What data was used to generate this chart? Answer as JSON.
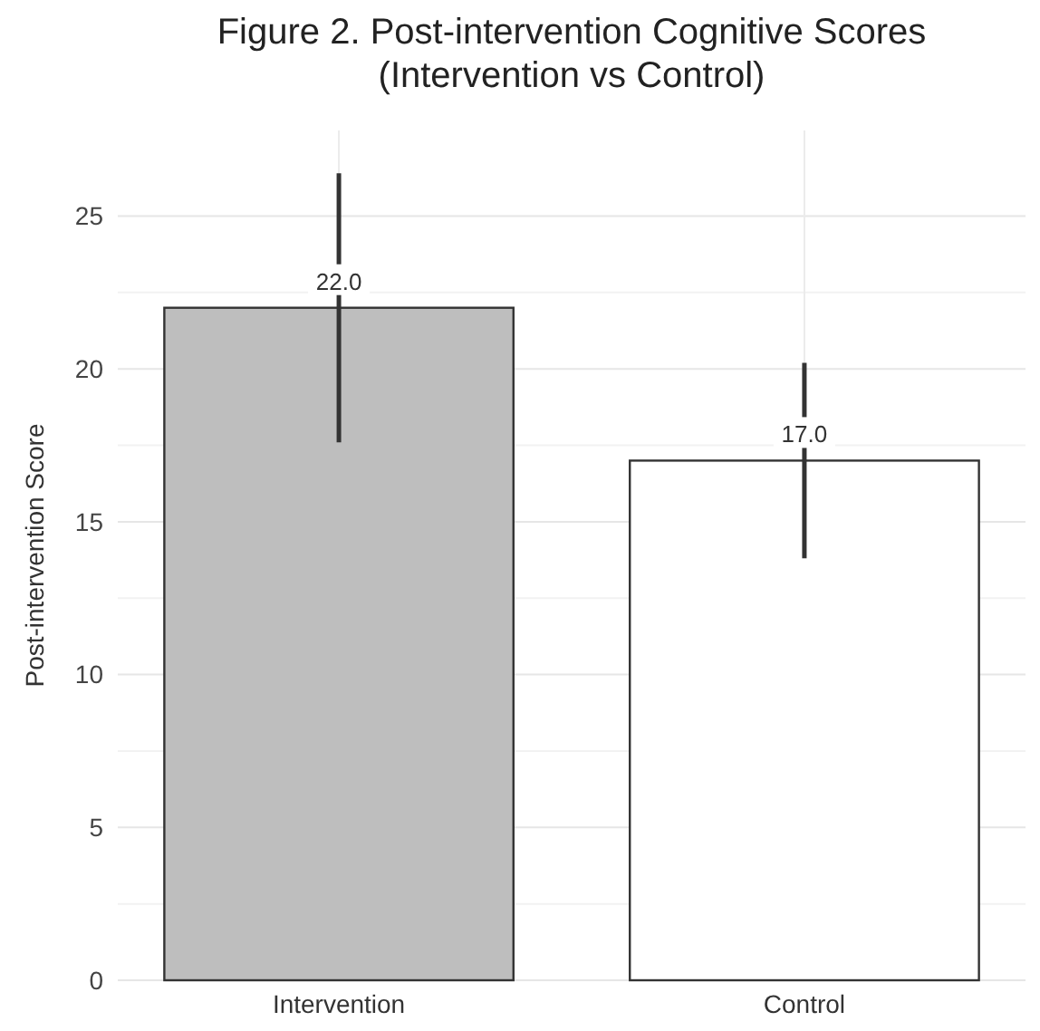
{
  "chart_data": {
    "type": "bar",
    "title": "Figure 2. Post-intervention Cognitive Scores\n(Intervention vs Control)",
    "ylabel": "Post-intervention Score",
    "categories": [
      "Intervention",
      "Control"
    ],
    "values": [
      22.0,
      17.0
    ],
    "colors": [
      "#bebebe",
      "#ffffff"
    ],
    "errors": [
      4.4,
      3.2
    ],
    "value_labels": [
      "22.0",
      "17.0"
    ],
    "ylim": [
      0,
      27.8
    ],
    "yticks": [
      0,
      5,
      10,
      15,
      20,
      25
    ],
    "grid": true
  }
}
